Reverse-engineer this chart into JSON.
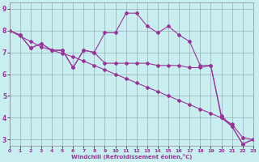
{
  "line1_x": [
    0,
    1,
    2,
    3,
    4,
    5,
    6,
    7,
    8,
    9,
    10,
    11,
    12,
    13,
    14,
    15,
    16,
    17,
    18,
    19,
    20,
    21,
    22,
    23
  ],
  "line1_y": [
    8.0,
    7.8,
    7.2,
    7.4,
    7.1,
    7.1,
    6.3,
    7.1,
    7.0,
    7.9,
    7.9,
    8.8,
    8.8,
    8.2,
    7.9,
    8.2,
    7.8,
    7.5,
    6.4,
    6.4,
    4.1,
    3.6,
    2.8,
    3.0
  ],
  "line2_x": [
    0,
    1,
    2,
    3,
    4,
    5,
    6,
    7,
    8,
    9,
    10,
    11,
    12,
    13,
    14,
    15,
    16,
    17,
    18,
    19,
    20,
    21,
    22,
    23
  ],
  "line2_y": [
    8.0,
    7.8,
    7.2,
    7.4,
    7.1,
    7.1,
    6.3,
    7.1,
    7.0,
    6.5,
    6.5,
    6.5,
    6.5,
    6.5,
    6.4,
    6.4,
    6.4,
    6.3,
    6.3,
    6.4,
    4.0,
    3.6,
    2.8,
    3.0
  ],
  "line3_x": [
    0,
    1,
    2,
    3,
    4,
    5,
    6,
    7,
    8,
    9,
    10,
    11,
    12,
    13,
    14,
    15,
    16,
    17,
    18,
    19,
    20,
    21,
    22,
    23
  ],
  "line3_y": [
    8.0,
    7.75,
    7.5,
    7.25,
    7.1,
    6.95,
    6.8,
    6.6,
    6.4,
    6.2,
    6.0,
    5.8,
    5.6,
    5.4,
    5.2,
    5.0,
    4.8,
    4.6,
    4.4,
    4.2,
    4.0,
    3.7,
    3.1,
    3.0
  ],
  "line_color": "#993399",
  "bg_color": "#c8eef0",
  "grid_color": "#99aabb",
  "xlabel": "Windchill (Refroidissement éolien,°C)",
  "xlim": [
    0,
    23
  ],
  "ylim": [
    2.7,
    9.3
  ],
  "yticks": [
    3,
    4,
    5,
    6,
    7,
    8,
    9
  ],
  "xticks": [
    0,
    1,
    2,
    3,
    4,
    5,
    6,
    7,
    8,
    9,
    10,
    11,
    12,
    13,
    14,
    15,
    16,
    17,
    18,
    19,
    20,
    21,
    22,
    23
  ]
}
